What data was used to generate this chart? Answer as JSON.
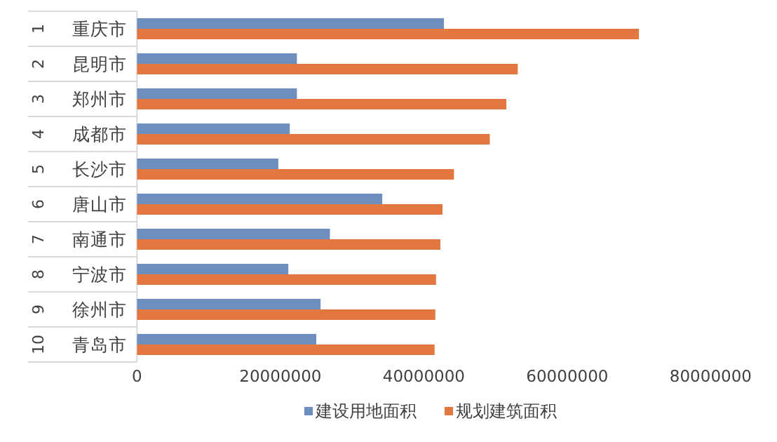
{
  "chart_data": {
    "type": "bar",
    "orientation": "horizontal",
    "categories": [
      "重庆市",
      "昆明市",
      "郑州市",
      "成都市",
      "长沙市",
      "唐山市",
      "南通市",
      "宁波市",
      "徐州市",
      "青岛市"
    ],
    "annotations": [
      "1",
      "2",
      "3",
      "4",
      "5",
      "6",
      "7",
      "8",
      "9",
      "10"
    ],
    "series": [
      {
        "name": "建设用地面积",
        "color": "#6e8ebf",
        "values": [
          42800000,
          22300000,
          22300000,
          21300000,
          19700000,
          34200000,
          26900000,
          21100000,
          25600000,
          25000000
        ]
      },
      {
        "name": "规划建筑面积",
        "color": "#e2773f",
        "values": [
          70000000,
          53100000,
          51500000,
          49200000,
          44200000,
          42600000,
          42300000,
          41700000,
          41600000,
          41500000
        ]
      }
    ],
    "xlim": [
      0,
      80000000
    ],
    "xticks": [
      0,
      20000000,
      40000000,
      60000000,
      80000000
    ],
    "legend": "bottom",
    "grid": false
  }
}
